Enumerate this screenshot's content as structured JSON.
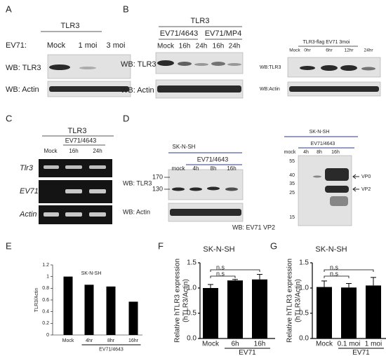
{
  "panels": {
    "A": {
      "letter": "A",
      "header": "TLR3",
      "ev71": "EV71:",
      "lanes": [
        "Mock",
        "1 moi",
        "3 moi"
      ],
      "blots": [
        "WB: TLR3",
        "WB: Actin"
      ]
    },
    "B": {
      "letter": "B",
      "header": "TLR3",
      "groups": [
        "EV71/4643",
        "EV71/MP4"
      ],
      "lanes": [
        "Mock",
        "16h",
        "24h",
        "16h",
        "24h"
      ],
      "blots": [
        "WB: TLR3",
        "WB: Actin"
      ],
      "inset": {
        "header": "TLR3-flag EV71  3moi",
        "lanes": [
          "Mock",
          "0hr",
          "6hr",
          "12hr",
          "24hr"
        ],
        "blots": [
          "WB:TLR3",
          "WB:Actin"
        ]
      }
    },
    "C": {
      "letter": "C",
      "header": "TLR3",
      "group": "EV71/4643",
      "lanes": [
        "Mock",
        "16h",
        "24h"
      ],
      "rows": [
        "Tlr3",
        "EV71",
        "Actin"
      ]
    },
    "D": {
      "letter": "D",
      "left": {
        "cell": "SK-N-SH",
        "group": "EV71/4643",
        "lanes": [
          "mock",
          "4h",
          "8h",
          "16h"
        ],
        "markers": [
          "170",
          "130"
        ],
        "blots": [
          "WB: TLR3",
          "WB: Actin"
        ]
      },
      "right": {
        "cell": "SK-N-SH",
        "group": "EV71/4643",
        "lanes": [
          "mock",
          "4h",
          "8h",
          "16h"
        ],
        "markers": [
          "55",
          "40",
          "35",
          "25",
          "15"
        ],
        "arrows": [
          "VP0",
          "VP2"
        ],
        "blot": "WB: EV71 VP2"
      }
    }
  },
  "chart_data": [
    {
      "type": "bar",
      "panel": "E",
      "title": "SK-N-SH",
      "ylabel": "TLR3/Actin",
      "categories": [
        "Mock",
        "4hr",
        "8hr",
        "16hr"
      ],
      "values": [
        1.0,
        0.86,
        0.83,
        0.57
      ],
      "color": "#000000",
      "group": "EV71/4643",
      "ylim": [
        0,
        1.2
      ],
      "yticks": [
        0,
        0.2,
        0.4,
        0.6,
        0.8,
        1,
        1.2
      ]
    },
    {
      "type": "bar",
      "panel": "F",
      "title": "SK-N-SH",
      "ylabel": [
        "Relative hTLR3 expression",
        "(hTLR3/Actin)"
      ],
      "categories": [
        "Mock",
        "6h",
        "16h"
      ],
      "values": [
        1.0,
        1.15,
        1.17
      ],
      "errors": [
        0.07,
        0.02,
        0.1
      ],
      "color": "#000000",
      "group": "EV71",
      "annotations": [
        "n.s",
        "n.s"
      ],
      "ylim": [
        0,
        1.5
      ],
      "yticks": [
        {
          "value": 0,
          "label": "0.0"
        },
        {
          "value": 0.5,
          "label": "0.5"
        },
        {
          "value": 1,
          "label": "1.0"
        },
        {
          "value": 1.5,
          "label": "1.5"
        }
      ]
    },
    {
      "type": "bar",
      "panel": "G",
      "title": "SK-N-SH",
      "ylabel": [
        "Relative hTLR3 expression",
        "(hTLR3/Actin)"
      ],
      "categories": [
        "Mock",
        "0.1 moi",
        "1 moi"
      ],
      "values": [
        1.02,
        1.01,
        1.05
      ],
      "errors": [
        0.12,
        0.08,
        0.16
      ],
      "color": "#000000",
      "group": "EV71",
      "annotations": [
        "n.s",
        "n.s"
      ],
      "ylim": [
        0,
        1.5
      ],
      "yticks": [
        {
          "value": 0,
          "label": "0.0"
        },
        {
          "value": 0.5,
          "label": "0.5"
        },
        {
          "value": 1,
          "label": "1.0"
        },
        {
          "value": 1.5,
          "label": "1.5"
        }
      ]
    }
  ]
}
